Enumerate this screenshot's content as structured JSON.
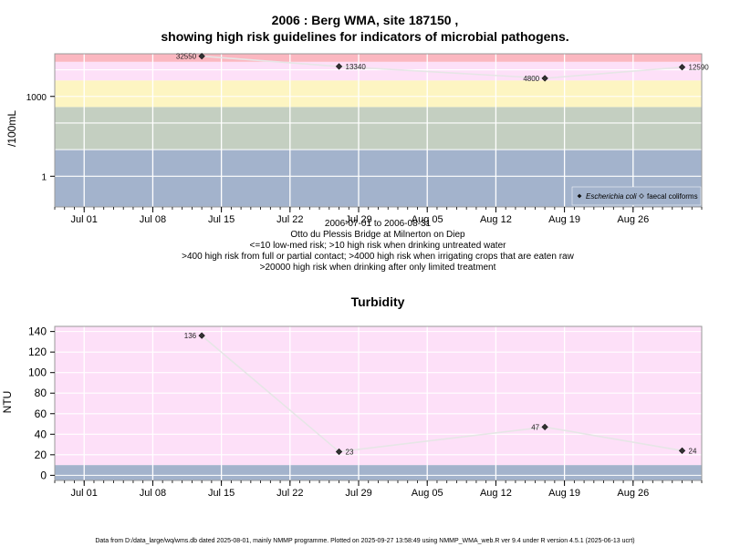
{
  "page": {
    "title_line1": "2006 : Berg WMA, site 187150 ,",
    "title_line2": "showing high risk guidelines for indicators of microbial pathogens.",
    "date_range": "2006-07-01 to 2006-08-31",
    "site_name": "Otto du Plessis Bridge at Milnerton on Diep",
    "guideline_1": "<=10 low-med risk; >10 high risk when drinking untreated water",
    "guideline_2": ">400 high risk from full or partial contact; >4000 high risk when irrigating crops that are eaten raw",
    "guideline_3": ">20000 high risk when drinking after only limited treatment",
    "footer": "Data from D:/data_large/wq/wms.db dated 2025-08-01, mainly NMMP programme. Plotted on 2025-09-27 13:58:49 using NMMP_WMA_web.R ver 9.4 under R version 4.5.1 (2025-06-13 ucrt)"
  },
  "chart_data": [
    {
      "type": "line",
      "title": "",
      "ylabel": "/100mL",
      "yscale": "log10",
      "ylim": [
        0.07,
        40000
      ],
      "y_ticks": [
        1,
        1000
      ],
      "y_tick_labels": [
        "1",
        "1000"
      ],
      "xlim": [
        "2006-06-28",
        "2006-09-02"
      ],
      "x_ticks": [
        "2006-07-01",
        "2006-07-08",
        "2006-07-15",
        "2006-07-22",
        "2006-07-29",
        "2006-08-05",
        "2006-08-12",
        "2006-08-19",
        "2006-08-26"
      ],
      "x_tick_labels": [
        "Jul 01",
        "Jul 08",
        "Jul 15",
        "Jul 22",
        "Jul 29",
        "Aug 05",
        "Aug 12",
        "Aug 19",
        "Aug 26"
      ],
      "grid": true,
      "legend_position": "bottom-right",
      "bands": [
        {
          "from": 0.07,
          "to": 10,
          "color": "#a3b3cc",
          "label": "low-med risk"
        },
        {
          "from": 10,
          "to": 400,
          "color": "#c4cfc1",
          "label": "high risk untreated drinking"
        },
        {
          "from": 400,
          "to": 4000,
          "color": "#fdf5c2",
          "label": "high risk full or partial contact"
        },
        {
          "from": 4000,
          "to": 20000,
          "color": "#fde0f8",
          "label": "high risk irrigation"
        },
        {
          "from": 20000,
          "to": 40000,
          "color": "#fbb7c0",
          "label": "high risk limited treatment"
        }
      ],
      "series": [
        {
          "name": "Escherichia coli",
          "marker": "filled-diamond",
          "color": "#333333",
          "x": [
            "2006-07-13",
            "2006-07-27",
            "2006-08-17",
            "2006-08-31"
          ],
          "values": [
            32550,
            13340,
            4800,
            12590
          ],
          "labels": [
            "32550",
            "13340",
            "4800",
            "12590"
          ],
          "label_side": [
            "left",
            "right",
            "left",
            "right"
          ]
        },
        {
          "name": "faecal coliforms",
          "marker": "open-diamond",
          "color": "#555555",
          "x": [],
          "values": []
        }
      ]
    },
    {
      "type": "line",
      "title": "Turbidity",
      "ylabel": "NTU",
      "yscale": "linear",
      "ylim": [
        -5,
        145
      ],
      "y_ticks": [
        0,
        20,
        40,
        60,
        80,
        100,
        120,
        140
      ],
      "y_tick_labels": [
        "0",
        "20",
        "40",
        "60",
        "80",
        "100",
        "120",
        "140"
      ],
      "xlim": [
        "2006-06-28",
        "2006-09-02"
      ],
      "x_ticks": [
        "2006-07-01",
        "2006-07-08",
        "2006-07-15",
        "2006-07-22",
        "2006-07-29",
        "2006-08-05",
        "2006-08-12",
        "2006-08-19",
        "2006-08-26"
      ],
      "x_tick_labels": [
        "Jul 01",
        "Jul 08",
        "Jul 15",
        "Jul 22",
        "Jul 29",
        "Aug 05",
        "Aug 12",
        "Aug 19",
        "Aug 26"
      ],
      "grid": true,
      "bands": [
        {
          "from": -5,
          "to": 10,
          "color": "#a3b3cc"
        },
        {
          "from": 10,
          "to": 145,
          "color": "#fde0f8"
        }
      ],
      "series": [
        {
          "name": "",
          "marker": "filled-diamond",
          "color": "#333333",
          "x": [
            "2006-07-13",
            "2006-07-27",
            "2006-08-17",
            "2006-08-31"
          ],
          "values": [
            136,
            23,
            47,
            24
          ],
          "labels": [
            "136",
            "23",
            "47",
            "24"
          ],
          "label_side": [
            "left",
            "right",
            "left",
            "right"
          ]
        }
      ]
    }
  ]
}
